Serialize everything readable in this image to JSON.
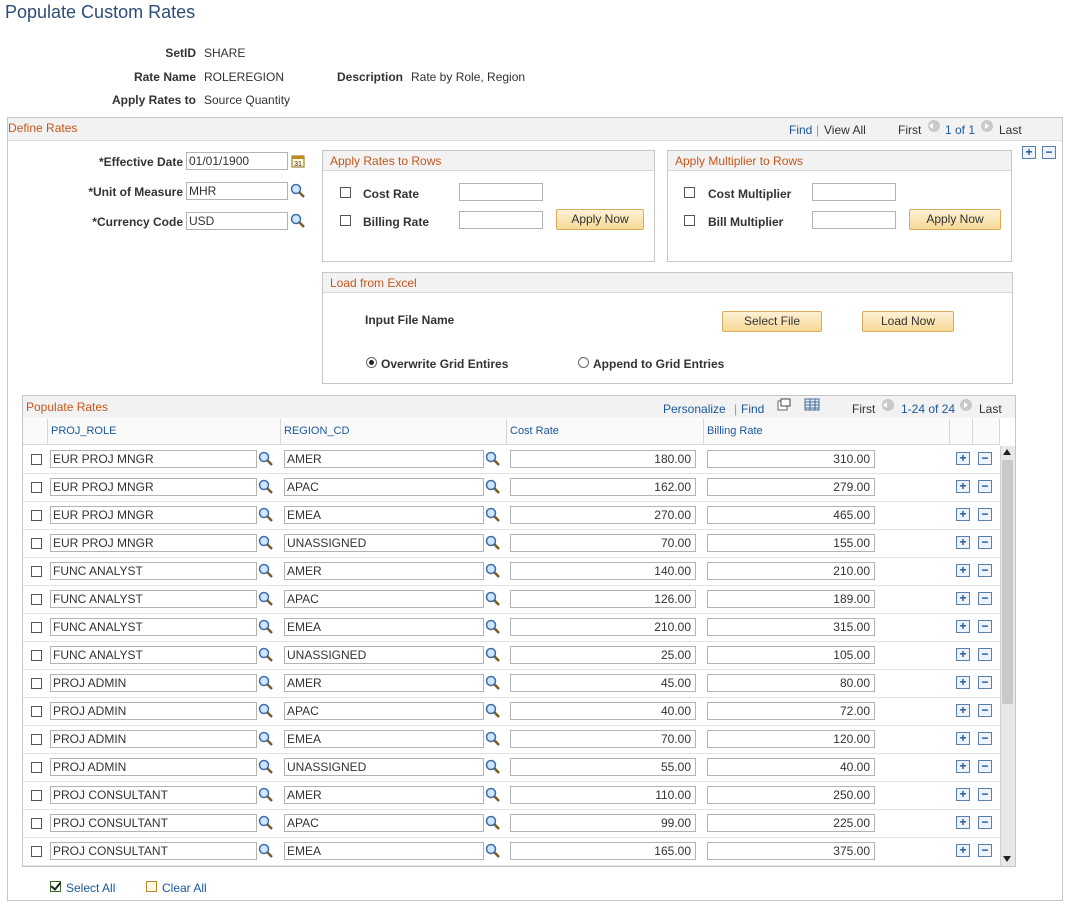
{
  "page": {
    "title": "Populate Custom Rates"
  },
  "header": {
    "setid_label": "SetID",
    "setid_value": "SHARE",
    "rate_name_label": "Rate Name",
    "rate_name_value": "ROLEREGION",
    "description_label": "Description",
    "description_value": "Rate by Role, Region",
    "apply_rates_to_label": "Apply Rates to",
    "apply_rates_to_value": "Source Quantity"
  },
  "define_rates": {
    "title": "Define Rates",
    "find": "Find",
    "sep": "|",
    "view_all": "View All",
    "first": "First",
    "count": "1 of 1",
    "last": "Last",
    "effective_date_label": "*Effective Date",
    "effective_date_value": "01/01/1900",
    "uom_label": "*Unit of Measure",
    "uom_value": "MHR",
    "currency_label": "*Currency Code",
    "currency_value": "USD"
  },
  "apply_rates_rows": {
    "title": "Apply Rates to Rows",
    "cost_rate_label": "Cost Rate",
    "cost_rate_value": "",
    "billing_rate_label": "Billing Rate",
    "billing_rate_value": "",
    "apply_now": "Apply Now"
  },
  "apply_multiplier_rows": {
    "title": "Apply Multiplier to Rows",
    "cost_multiplier_label": "Cost Multiplier",
    "cost_multiplier_value": "",
    "bill_multiplier_label": "Bill Multiplier",
    "bill_multiplier_value": "",
    "apply_now": "Apply Now"
  },
  "load_excel": {
    "title": "Load from Excel",
    "input_file_label": "Input File Name",
    "select_file": "Select File",
    "load_now": "Load Now",
    "overwrite_label": "Overwrite Grid Entires",
    "append_label": "Append to Grid Entries",
    "selected_option": "overwrite"
  },
  "populate_rates": {
    "title": "Populate Rates",
    "personalize": "Personalize",
    "sep": "|",
    "find": "Find",
    "first": "First",
    "count": "1-24 of 24",
    "last": "Last",
    "columns": [
      "PROJ_ROLE",
      "REGION_CD",
      "Cost Rate",
      "Billing Rate"
    ],
    "rows": [
      {
        "role": "EUR PROJ MNGR",
        "region": "AMER",
        "cost": "180.00",
        "billing": "310.00"
      },
      {
        "role": "EUR PROJ MNGR",
        "region": "APAC",
        "cost": "162.00",
        "billing": "279.00"
      },
      {
        "role": "EUR PROJ MNGR",
        "region": "EMEA",
        "cost": "270.00",
        "billing": "465.00"
      },
      {
        "role": "EUR PROJ MNGR",
        "region": "UNASSIGNED",
        "cost": "70.00",
        "billing": "155.00"
      },
      {
        "role": "FUNC ANALYST",
        "region": "AMER",
        "cost": "140.00",
        "billing": "210.00"
      },
      {
        "role": "FUNC ANALYST",
        "region": "APAC",
        "cost": "126.00",
        "billing": "189.00"
      },
      {
        "role": "FUNC ANALYST",
        "region": "EMEA",
        "cost": "210.00",
        "billing": "315.00"
      },
      {
        "role": "FUNC ANALYST",
        "region": "UNASSIGNED",
        "cost": "25.00",
        "billing": "105.00"
      },
      {
        "role": "PROJ ADMIN",
        "region": "AMER",
        "cost": "45.00",
        "billing": "80.00"
      },
      {
        "role": "PROJ ADMIN",
        "region": "APAC",
        "cost": "40.00",
        "billing": "72.00"
      },
      {
        "role": "PROJ ADMIN",
        "region": "EMEA",
        "cost": "70.00",
        "billing": "120.00"
      },
      {
        "role": "PROJ ADMIN",
        "region": "UNASSIGNED",
        "cost": "55.00",
        "billing": "40.00"
      },
      {
        "role": "PROJ CONSULTANT",
        "region": "AMER",
        "cost": "110.00",
        "billing": "250.00"
      },
      {
        "role": "PROJ CONSULTANT",
        "region": "APAC",
        "cost": "99.00",
        "billing": "225.00"
      },
      {
        "role": "PROJ CONSULTANT",
        "region": "EMEA",
        "cost": "165.00",
        "billing": "375.00"
      }
    ]
  },
  "footer": {
    "select_all": "Select All",
    "clear_all": "Clear All"
  },
  "icons": {
    "lookup": "magnifier-icon",
    "calendar": "calendar-icon",
    "add": "plus-icon",
    "delete": "minus-icon",
    "zoom": "new-window-icon",
    "download": "spreadsheet-icon"
  },
  "colors": {
    "title": "#2c4d76",
    "section": "#c0581d",
    "link": "#1a5896",
    "button": "#f6d995"
  }
}
